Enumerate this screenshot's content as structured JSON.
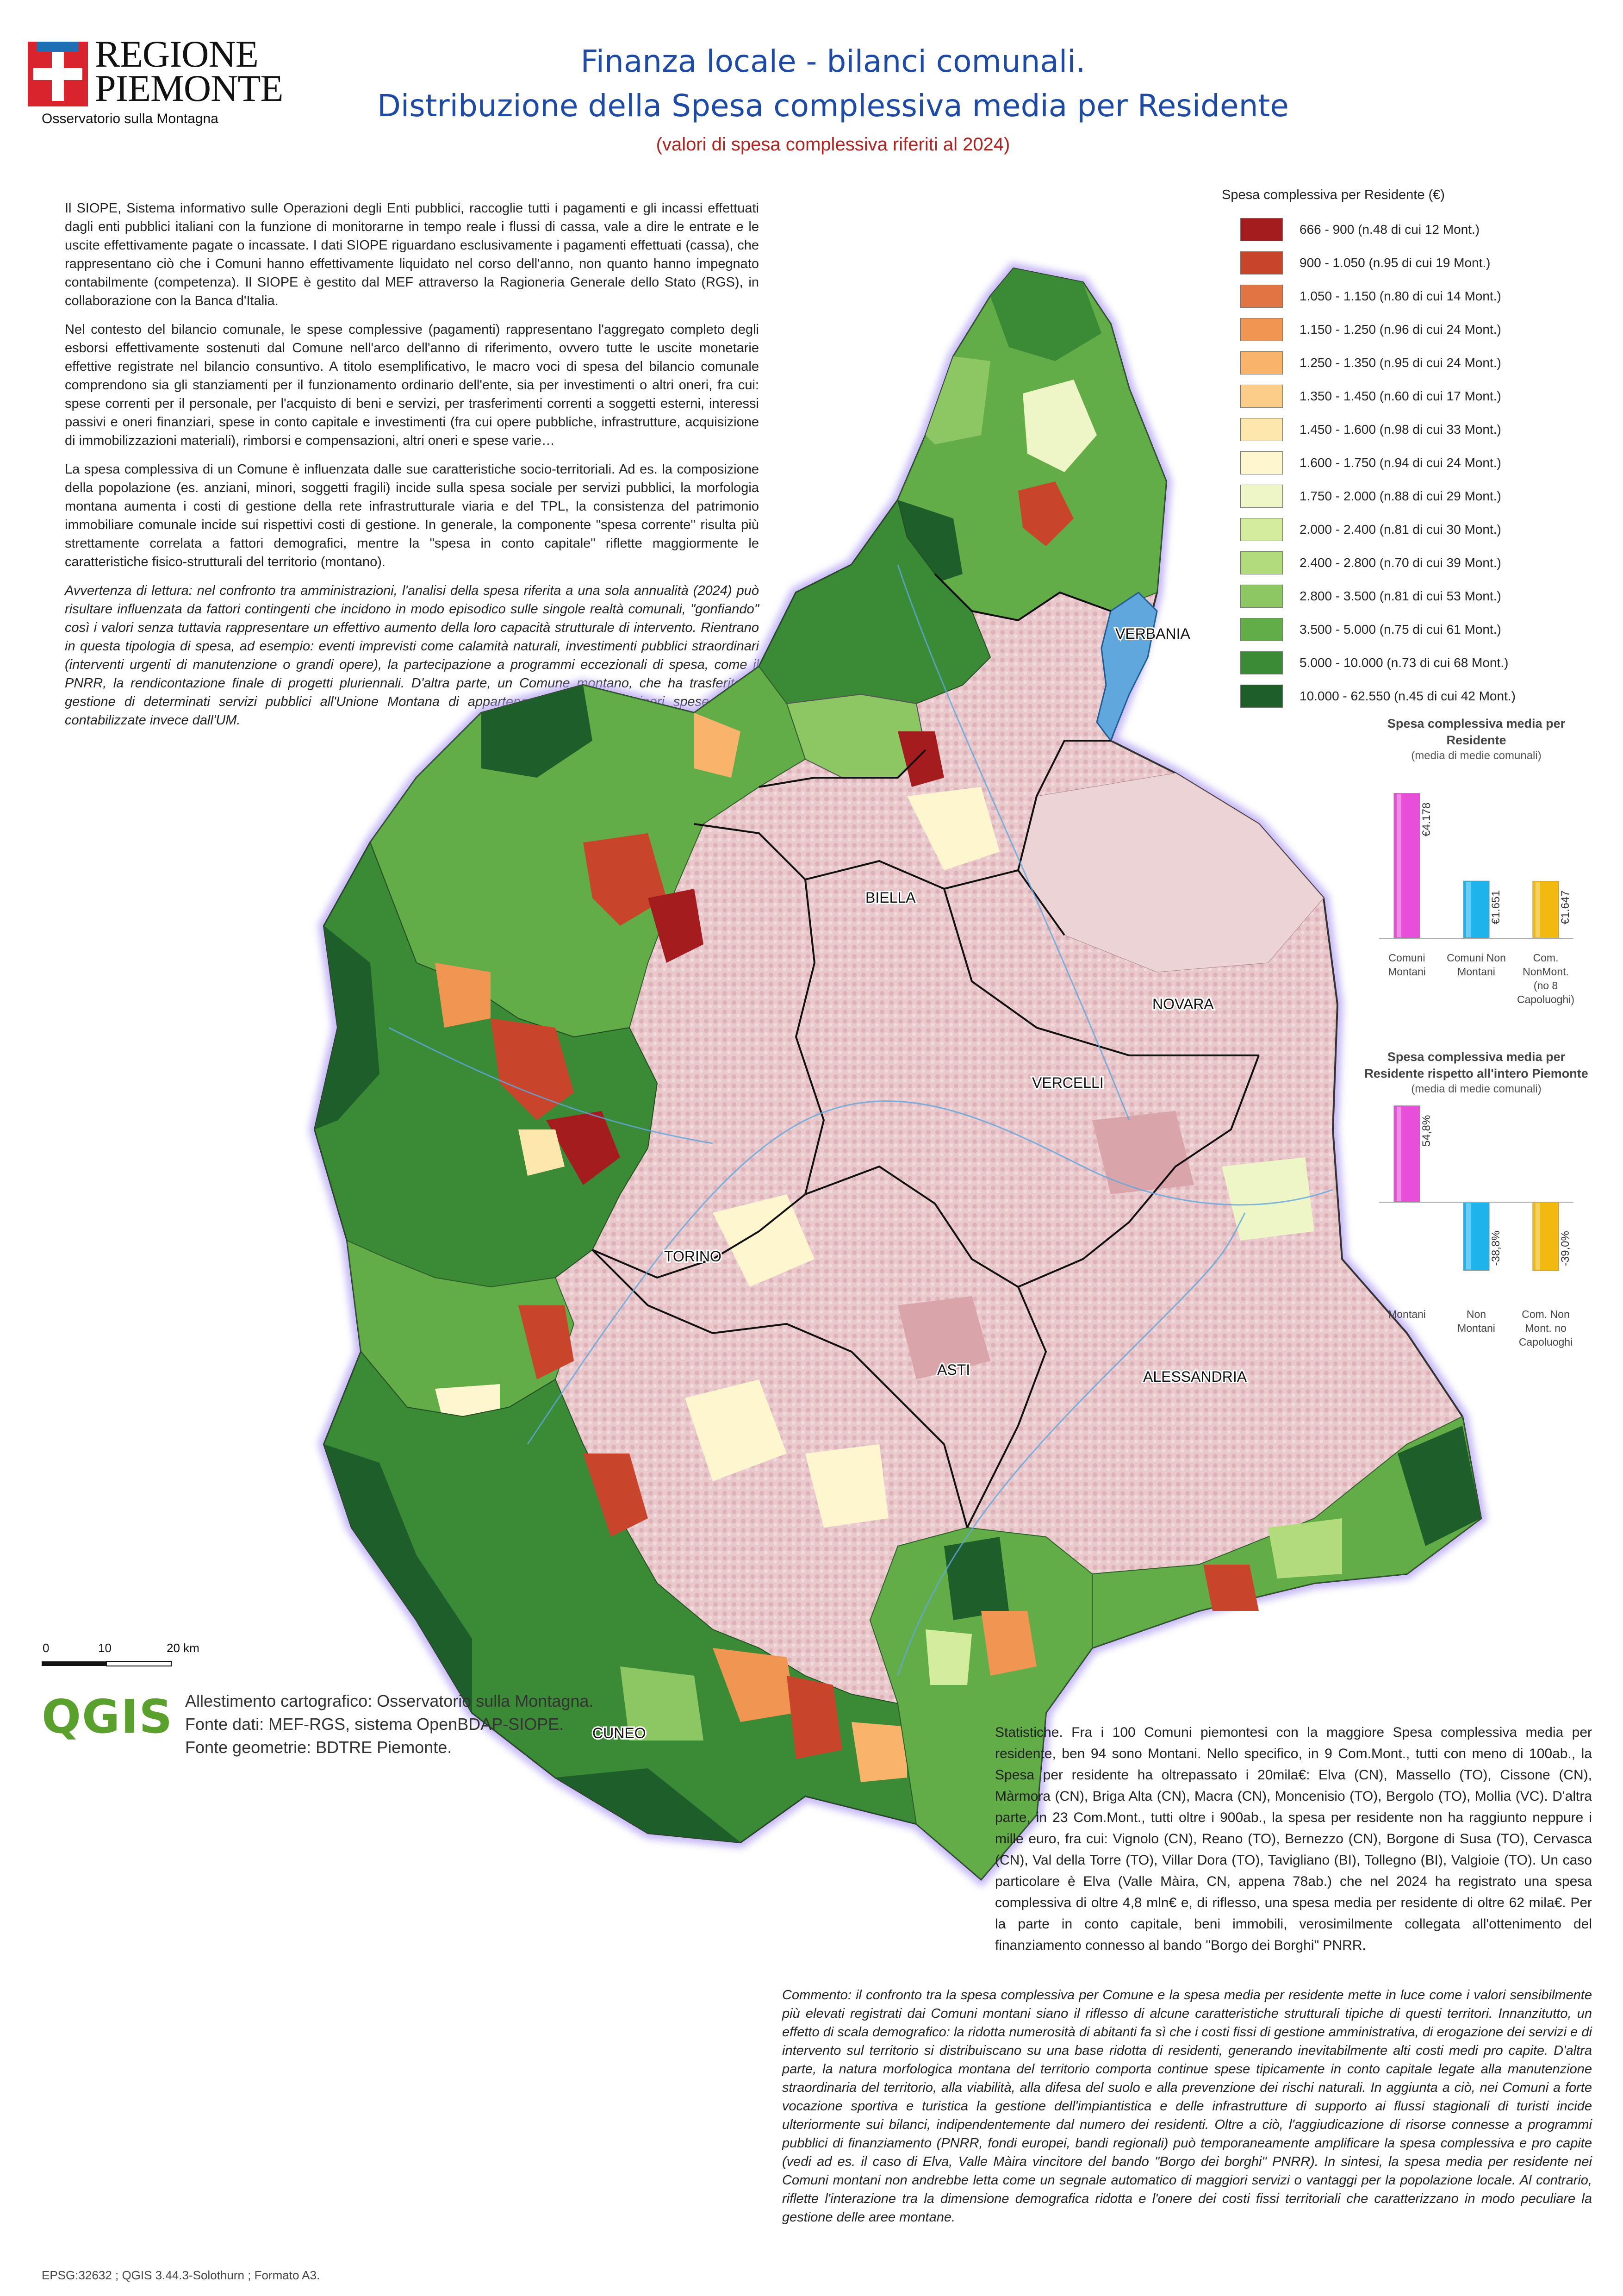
{
  "header": {
    "logo_line1": "REGIONE",
    "logo_line2": "PIEMONTE",
    "logo_sub": "Osservatorio sulla Montagna",
    "title_line1": "Finanza locale - bilanci comunali.",
    "title_line2": "Distribuzione della Spesa complessiva media per Residente",
    "subtitle": "(valori di spesa complessiva riferiti al 2024)"
  },
  "intro": {
    "p1": "Il SIOPE, Sistema informativo sulle Operazioni degli Enti pubblici, raccoglie tutti i pagamenti e gli incassi effettuati dagli enti pubblici italiani con la funzione di monitorarne in tempo reale i flussi di cassa, vale a dire le entrate e le uscite effettivamente pagate o incassate. I dati SIOPE riguardano esclusivamente i pagamenti effettuati (cassa), che rappresentano ciò che i Comuni hanno effettivamente liquidato nel corso dell'anno, non quanto hanno impegnato contabilmente (competenza). Il SIOPE è gestito dal MEF attraverso la Ragioneria Generale dello Stato (RGS), in collaborazione con la Banca d'Italia.",
    "p2": "Nel contesto del bilancio comunale, le spese complessive (pagamenti) rappresentano l'aggregato completo degli esborsi effettivamente sostenuti dal Comune nell'arco dell'anno di riferimento, ovvero tutte le uscite monetarie effettive registrate nel bilancio consuntivo. A titolo esemplificativo, le macro voci di spesa del bilancio comunale comprendono sia gli stanziamenti per il funzionamento ordinario dell'ente, sia per investimenti o altri oneri, fra cui: spese correnti per il personale, per l'acquisto di beni e servizi, per trasferimenti correnti a soggetti esterni, interessi passivi e oneri finanziari, spese in conto capitale e investimenti (fra cui opere pubbliche, infrastrutture, acquisizione di immobilizzazioni materiali), rimborsi e compensazioni, altri oneri e spese varie…",
    "p3": "La spesa complessiva di un Comune è influenzata dalle sue caratteristiche socio-territoriali. Ad es. la composizione della popolazione (es. anziani, minori, soggetti fragili) incide sulla spesa sociale per servizi pubblici, la morfologia montana aumenta i costi di gestione della rete infrastrutturale viaria e del TPL, la consistenza del patrimonio immobiliare comunale incide sui rispettivi costi di gestione. In generale, la componente \"spesa corrente\" risulta più strettamente correlata a fattori demografici, mentre la \"spesa in conto capitale\" riflette maggiormente le caratteristiche fisico-strutturali del territorio (montano).",
    "p4": "Avvertenza di lettura: nel confronto tra amministrazioni, l'analisi della spesa riferita a una sola annualità (2024) può risultare influenzata da fattori contingenti che incidono in modo episodico sulle singole realtà comunali, \"gonfiando\" così i valori senza tuttavia rappresentare un effettivo aumento della loro capacità strutturale di intervento. Rientrano in questa tipologia di spesa, ad esempio: eventi imprevisti come calamità naturali, investimenti pubblici straordinari (interventi urgenti di manutenzione o grandi opere), la partecipazione a programmi eccezionali di spesa, come il PNRR, la rendicontazione finale di progetti pluriennali. D'altra parte, un Comune montano, che ha trasferito la gestione di determinati servizi pubblici all'Unione Montana di appartenenza, registrerà minori spese dirette, contabilizzate invece dall'UM."
  },
  "legend": {
    "title": "Spesa complessiva per Residente (€)",
    "classes": [
      {
        "label": "666 - 900 (n.48 di cui 12 Mont.)",
        "color": "#a51c1f"
      },
      {
        "label": "900 - 1.050 (n.95 di cui 19 Mont.)",
        "color": "#c8442b"
      },
      {
        "label": "1.050 - 1.150 (n.80 di cui 14 Mont.)",
        "color": "#e07443"
      },
      {
        "label": "1.150 - 1.250 (n.96 di cui 24 Mont.)",
        "color": "#f09552"
      },
      {
        "label": "1.250 - 1.350 (n.95 di cui 24 Mont.)",
        "color": "#f7b46a"
      },
      {
        "label": "1.350 - 1.450 (n.60 di cui 17 Mont.)",
        "color": "#fbcd89"
      },
      {
        "label": "1.450 - 1.600 (n.98 di cui 33 Mont.)",
        "color": "#fde7ad"
      },
      {
        "label": "1.600 - 1.750 (n.94 di cui 24 Mont.)",
        "color": "#fef6cf"
      },
      {
        "label": "1.750 - 2.000 (n.88 di cui 29 Mont.)",
        "color": "#eef6c7"
      },
      {
        "label": "2.000 - 2.400 (n.81 di cui 30 Mont.)",
        "color": "#d3ec9d"
      },
      {
        "label": "2.400 - 2.800 (n.70 di cui 39 Mont.)",
        "color": "#b2dc7c"
      },
      {
        "label": "2.800 - 3.500 (n.81 di cui 53 Mont.)",
        "color": "#8cc763"
      },
      {
        "label": "3.500 - 5.000 (n.75 di cui 61 Mont.)",
        "color": "#63ad49"
      },
      {
        "label": "5.000 - 10.000 (n.73 di cui 68 Mont.)",
        "color": "#3b8a36"
      },
      {
        "label": "10.000 - 62.550 (n.45 di cui 42 Mont.)",
        "color": "#1d5e2a"
      }
    ]
  },
  "chart_data": [
    {
      "type": "bar",
      "title": "Spesa complessiva media per Residente",
      "subtitle": "(media di medie comunali)",
      "categories": [
        "Comuni Montani",
        "Comuni Non Montani",
        "Com. NonMont. (no 8 Capoluoghi)"
      ],
      "values": [
        4178,
        1651,
        1647
      ],
      "value_labels": [
        "€4.178",
        "€1.651",
        "€1.647"
      ],
      "colors": [
        "#e84fd8",
        "#1eb3ea",
        "#f2b90f"
      ]
    },
    {
      "type": "bar",
      "title": "Spesa complessiva media per Residente rispetto all'intero Piemonte",
      "subtitle": "(media di medie comunali)",
      "categories": [
        "Montani",
        "Non Montani",
        "Com. Non Mont. no Capoluoghi"
      ],
      "values": [
        54.8,
        -38.8,
        -39.0
      ],
      "value_labels": [
        "54,8%",
        "-38,8%",
        "-39,0%"
      ],
      "colors": [
        "#e84fd8",
        "#1eb3ea",
        "#f2b90f"
      ]
    }
  ],
  "map": {
    "labels": [
      "VERBANIA",
      "BIELLA",
      "NOVARA",
      "VERCELLI",
      "TORINO",
      "ASTI",
      "ALESSANDRIA",
      "CUNEO"
    ],
    "scale": {
      "ticks": [
        "0",
        "10",
        "20 km"
      ]
    }
  },
  "stats": "Statistiche. Fra i 100 Comuni piemontesi con la maggiore Spesa complessiva media per residente, ben 94 sono Montani. Nello specifico, in 9 Com.Mont., tutti con meno di 100ab., la Spesa per residente ha oltrepassato i 20mila€: Elva (CN), Massello (TO), Cissone (CN), Màrmora (CN), Briga Alta (CN), Macra (CN), Moncenisio (TO), Bergolo (TO), Mollia (VC). D'altra parte, in 23 Com.Mont., tutti oltre i 900ab., la spesa per residente non ha raggiunto neppure i mille euro, fra cui: Vignolo (CN), Reano (TO), Bernezzo (CN), Borgone di Susa (TO), Cervasca (CN), Val della Torre (TO), Villar Dora (TO), Tavigliano (BI), Tollegno (BI), Valgioie (TO). Un caso particolare è Elva (Valle Màira, CN, appena 78ab.) che nel 2024 ha registrato una spesa complessiva di oltre 4,8 mln€ e, di riflesso, una spesa media per residente di oltre 62 mila€. Per la parte in conto capitale, beni immobili, verosimilmente collegata all'ottenimento del finanziamento connesso al bando \"Borgo dei Borghi\" PNRR.",
  "comment": "Commento: il confronto tra la spesa complessiva per Comune e la spesa media per residente mette in luce come i valori sensibilmente più elevati registrati dai Comuni montani siano il riflesso di alcune caratteristiche strutturali tipiche di questi territori. Innanzitutto, un effetto di scala demografico: la ridotta numerosità di abitanti fa sì che i costi fissi di gestione amministrativa, di erogazione dei servizi e di intervento sul territorio si distribuiscano su una base ridotta di residenti, generando inevitabilmente alti costi medi pro capite. D'altra parte, la natura morfologica montana del territorio comporta continue spese tipicamente in conto capitale legate alla manutenzione straordinaria del territorio, alla viabilità, alla difesa del suolo e alla prevenzione dei rischi naturali. In aggiunta a ciò, nei Comuni a forte vocazione sportiva e turistica la gestione dell'impiantistica e delle infrastrutture di supporto ai flussi stagionali di turisti incide ulteriormente sui bilanci, indipendentemente dal numero dei residenti. Oltre a ciò, l'aggiudicazione di risorse connesse a programmi pubblici di finanziamento (PNRR, fondi europei, bandi regionali) può temporaneamente amplificare la spesa complessiva e pro capite (vedi ad es. il caso di Elva, Valle Màira vincitore del bando \"Borgo dei borghi\" PNRR). In sintesi, la spesa media per residente nei Comuni montani non andrebbe letta come un segnale automatico di maggiori servizi o vantaggi per la popolazione locale. Al contrario, riflette l'interazione tra la dimensione demografica ridotta e l'onere dei costi fissi territoriali che caratterizzano in modo peculiare la gestione delle aree montane.",
  "credits": {
    "logo": "QGIS",
    "line1": "Allestimento cartografico: Osservatorio sulla Montagna.",
    "line2": "Fonte dati: MEF-RGS, sistema OpenBDAP-SIOPE.",
    "line3": "Fonte geometrie: BDTRE Piemonte.",
    "epsg": "EPSG:32632 ; QGIS 3.44.3-Solothurn ; Formato A3."
  }
}
